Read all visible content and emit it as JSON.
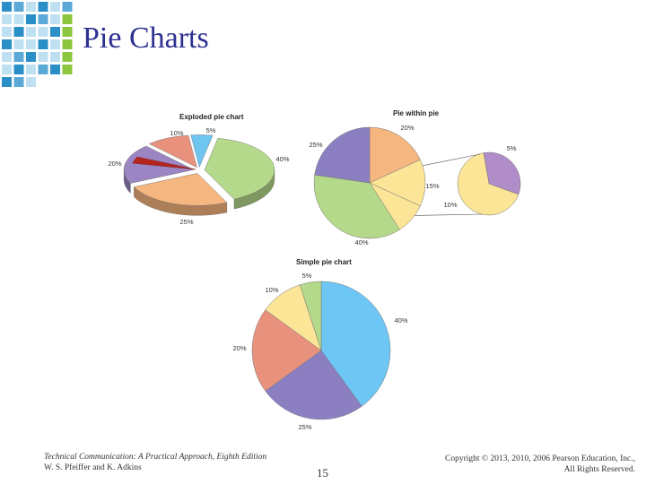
{
  "slide": {
    "title": "Pie Charts",
    "footer_book": "Technical Communication: A Practical Approach, Eighth Edition",
    "footer_authors": "W. S. Pfeiffer and K. Adkins",
    "page_number": "15",
    "copyright_line1": "Copyright © 2013, 2010, 2006 Pearson Education, Inc.,",
    "copyright_line2": "All Rights Reserved."
  },
  "colors": {
    "title": "#2e3192",
    "deco_blue_dark": "#2b8fc7",
    "deco_blue_light": "#bfe0f1",
    "deco_green": "#8cc63f"
  },
  "chart_data": [
    {
      "type": "pie",
      "title": "Exploded pie chart",
      "labels": [
        "5%",
        "40%",
        "25%",
        "20%",
        "10%"
      ],
      "values": [
        5,
        40,
        25,
        20,
        10
      ],
      "colors": [
        "#6ec6f0",
        "#b5d98a",
        "#f6b67f",
        "#9b85c3",
        "#e8927e"
      ],
      "exploded": true
    },
    {
      "type": "pie",
      "title": "Pie within pie",
      "labels": [
        "20%",
        "15%",
        "10%",
        "40%",
        "25%"
      ],
      "values": [
        20,
        15,
        10,
        40,
        25
      ],
      "colors": [
        "#f6b67f",
        "#fde597",
        "#fde597",
        "#b5d98a",
        "#8b7fc2"
      ],
      "detail": {
        "labels": [
          "5%",
          "10%"
        ],
        "values": [
          5,
          10
        ],
        "colors": [
          "#b08cc8",
          "#fde597"
        ]
      }
    },
    {
      "type": "pie",
      "title": "Simple pie chart",
      "labels": [
        "40%",
        "25%",
        "20%",
        "10%",
        "5%"
      ],
      "values": [
        40,
        25,
        20,
        10,
        5
      ],
      "colors": [
        "#6ec6f5",
        "#8b7fc2",
        "#e8927e",
        "#fde597",
        "#b5d98a"
      ]
    }
  ]
}
